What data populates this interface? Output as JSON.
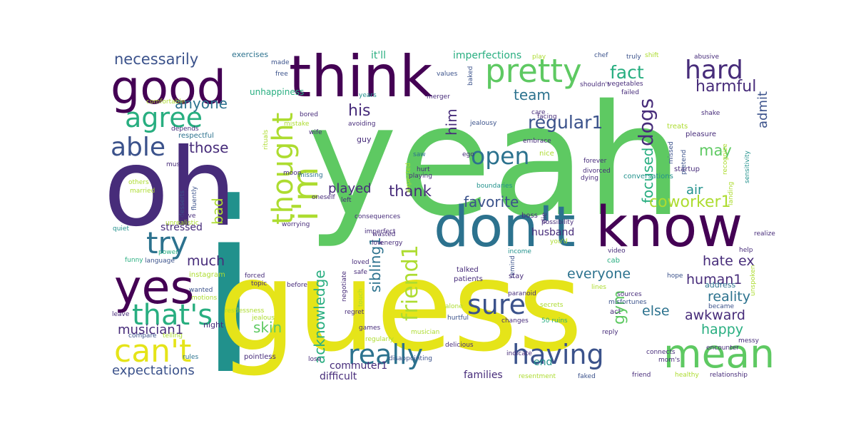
{
  "palette": {
    "deep_purple": "#440154",
    "indigo": "#472c7a",
    "blue_slate": "#3b528b",
    "steel_blue": "#2c728e",
    "teal": "#21918c",
    "sea_green": "#28ae80",
    "green": "#5ec962",
    "lime": "#addc30",
    "yellow": "#e5e419",
    "pale_yellow": "#dfe318"
  },
  "words": [
    {
      "text": "yeah",
      "color": "green"
    },
    {
      "text": "i",
      "color": "teal"
    },
    {
      "text": "guess",
      "color": "yellow"
    },
    {
      "text": "oh",
      "color": "indigo"
    },
    {
      "text": "don't",
      "color": "steel_blue"
    },
    {
      "text": "know",
      "color": "deep_purple"
    },
    {
      "text": "think",
      "color": "deep_purple"
    },
    {
      "text": "good",
      "color": "deep_purple"
    },
    {
      "text": "pretty",
      "color": "green"
    },
    {
      "text": "yes",
      "color": "deep_purple"
    },
    {
      "text": "really",
      "color": "steel_blue"
    },
    {
      "text": "having",
      "color": "blue_slate"
    },
    {
      "text": "mean",
      "color": "green"
    },
    {
      "text": "can't",
      "color": "yellow"
    },
    {
      "text": "that's",
      "color": "sea_green"
    },
    {
      "text": "i'm",
      "color": "lime"
    },
    {
      "text": "open",
      "color": "steel_blue"
    },
    {
      "text": "sure",
      "color": "blue_slate"
    },
    {
      "text": "hard",
      "color": "indigo"
    },
    {
      "text": "try",
      "color": "steel_blue"
    },
    {
      "text": "agree",
      "color": "sea_green"
    },
    {
      "text": "able",
      "color": "blue_slate"
    },
    {
      "text": "thought",
      "color": "lime"
    },
    {
      "text": "friend1",
      "color": "lime"
    },
    {
      "text": "fact",
      "color": "sea_green"
    },
    {
      "text": "regular1",
      "color": "blue_slate"
    },
    {
      "text": "dogs",
      "color": "indigo"
    },
    {
      "text": "focused",
      "color": "sea_green"
    },
    {
      "text": "harmful",
      "color": "indigo"
    },
    {
      "text": "admit",
      "color": "blue_slate"
    },
    {
      "text": "necessarily",
      "color": "blue_slate"
    },
    {
      "text": "anyone",
      "color": "steel_blue"
    },
    {
      "text": "his",
      "color": "indigo"
    },
    {
      "text": "team",
      "color": "steel_blue"
    },
    {
      "text": "him",
      "color": "indigo"
    },
    {
      "text": "those",
      "color": "indigo"
    },
    {
      "text": "may",
      "color": "green"
    },
    {
      "text": "gym",
      "color": "green"
    },
    {
      "text": "coworker1",
      "color": "lime"
    },
    {
      "text": "air",
      "color": "teal"
    },
    {
      "text": "thank",
      "color": "indigo"
    },
    {
      "text": "favorite",
      "color": "blue_slate"
    },
    {
      "text": "sibling1",
      "color": "steel_blue"
    },
    {
      "text": "acknowledge",
      "color": "sea_green"
    },
    {
      "text": "bad",
      "color": "lime"
    },
    {
      "text": "played",
      "color": "indigo"
    },
    {
      "text": "much",
      "color": "indigo"
    },
    {
      "text": "skin",
      "color": "green"
    },
    {
      "text": "everyone",
      "color": "steel_blue"
    },
    {
      "text": "hate",
      "color": "indigo"
    },
    {
      "text": "ex",
      "color": "indigo"
    },
    {
      "text": "human1",
      "color": "indigo"
    },
    {
      "text": "reality",
      "color": "steel_blue"
    },
    {
      "text": "else",
      "color": "steel_blue"
    },
    {
      "text": "awkward",
      "color": "indigo"
    },
    {
      "text": "happy",
      "color": "sea_green"
    },
    {
      "text": "musician1",
      "color": "indigo"
    },
    {
      "text": "expectations",
      "color": "blue_slate"
    },
    {
      "text": "stressed",
      "color": "indigo"
    },
    {
      "text": "husband",
      "color": "indigo"
    },
    {
      "text": "commuter1",
      "color": "indigo"
    },
    {
      "text": "difficult",
      "color": "indigo"
    },
    {
      "text": "families",
      "color": "indigo"
    },
    {
      "text": "end",
      "color": "teal"
    },
    {
      "text": "it'll",
      "color": "sea_green"
    },
    {
      "text": "imperfections",
      "color": "sea_green"
    },
    {
      "text": "exercises",
      "color": "steel_blue"
    },
    {
      "text": "made",
      "color": "blue_slate"
    },
    {
      "text": "free",
      "color": "blue_slate"
    },
    {
      "text": "unhappiness",
      "color": "sea_green"
    },
    {
      "text": "comfortable",
      "color": "lime"
    },
    {
      "text": "depends",
      "color": "indigo"
    },
    {
      "text": "respectful",
      "color": "steel_blue"
    },
    {
      "text": "must",
      "color": "indigo"
    },
    {
      "text": "others",
      "color": "lime"
    },
    {
      "text": "married",
      "color": "lime"
    },
    {
      "text": "fluently",
      "color": "blue_slate"
    },
    {
      "text": "desserts",
      "color": "blue_slate"
    },
    {
      "text": "alive",
      "color": "indigo"
    },
    {
      "text": "unrealistic",
      "color": "lime"
    },
    {
      "text": "quiet",
      "color": "teal"
    },
    {
      "text": "funny",
      "color": "sea_green"
    },
    {
      "text": "power",
      "color": "sea_green"
    },
    {
      "text": "language",
      "color": "blue_slate"
    },
    {
      "text": "instagram",
      "color": "lime"
    },
    {
      "text": "forced",
      "color": "indigo"
    },
    {
      "text": "topic",
      "color": "indigo"
    },
    {
      "text": "wanted",
      "color": "blue_slate"
    },
    {
      "text": "motions",
      "color": "lime"
    },
    {
      "text": "leave",
      "color": "indigo"
    },
    {
      "text": "compare",
      "color": "blue_slate"
    },
    {
      "text": "telling",
      "color": "lime"
    },
    {
      "text": "rules",
      "color": "steel_blue"
    },
    {
      "text": "pointless",
      "color": "indigo"
    },
    {
      "text": "night",
      "color": "indigo"
    },
    {
      "text": "restlessness",
      "color": "lime"
    },
    {
      "text": "jealous",
      "color": "lime"
    },
    {
      "text": "before",
      "color": "indigo"
    },
    {
      "text": "regret",
      "color": "indigo"
    },
    {
      "text": "lose",
      "color": "indigo"
    },
    {
      "text": "bored",
      "color": "indigo"
    },
    {
      "text": "mistake",
      "color": "lime"
    },
    {
      "text": "wife",
      "color": "indigo"
    },
    {
      "text": "rituals",
      "color": "lime"
    },
    {
      "text": "moon",
      "color": "indigo"
    },
    {
      "text": "missing",
      "color": "steel_blue"
    },
    {
      "text": "oneself",
      "color": "indigo"
    },
    {
      "text": "left",
      "color": "indigo"
    },
    {
      "text": "wasted",
      "color": "indigo"
    },
    {
      "text": "imperfect",
      "color": "indigo"
    },
    {
      "text": "worrying",
      "color": "indigo"
    },
    {
      "text": "consequences",
      "color": "indigo"
    },
    {
      "text": "negotiate",
      "color": "indigo"
    },
    {
      "text": "low",
      "color": "indigo"
    },
    {
      "text": "energy",
      "color": "indigo"
    },
    {
      "text": "loved",
      "color": "indigo"
    },
    {
      "text": "touch",
      "color": "lime"
    },
    {
      "text": "safe",
      "color": "indigo"
    },
    {
      "text": "regularly",
      "color": "lime"
    },
    {
      "text": "games",
      "color": "indigo"
    },
    {
      "text": "musician",
      "color": "lime"
    },
    {
      "text": "alone",
      "color": "lime"
    },
    {
      "text": "secrets",
      "color": "lime"
    },
    {
      "text": "hurtful",
      "color": "blue_slate"
    },
    {
      "text": "disappointing",
      "color": "blue_slate"
    },
    {
      "text": "delicious",
      "color": "indigo"
    },
    {
      "text": "changes",
      "color": "indigo"
    },
    {
      "text": "50 ruins",
      "color": "sea_green"
    },
    {
      "text": "years",
      "color": "teal"
    },
    {
      "text": "guy",
      "color": "indigo"
    },
    {
      "text": "avoiding",
      "color": "indigo"
    },
    {
      "text": "saw",
      "color": "steel_blue"
    },
    {
      "text": "hurt",
      "color": "indigo"
    },
    {
      "text": "expected",
      "color": "lime"
    },
    {
      "text": "playing",
      "color": "indigo"
    },
    {
      "text": "values",
      "color": "blue_slate"
    },
    {
      "text": "merger",
      "color": "indigo"
    },
    {
      "text": "baked",
      "color": "blue_slate"
    },
    {
      "text": "facing",
      "color": "indigo"
    },
    {
      "text": "care",
      "color": "indigo"
    },
    {
      "text": "jealousy",
      "color": "blue_slate"
    },
    {
      "text": "ego",
      "color": "indigo"
    },
    {
      "text": "embrace",
      "color": "indigo"
    },
    {
      "text": "nice",
      "color": "lime"
    },
    {
      "text": "boundaries",
      "color": "teal"
    },
    {
      "text": "die",
      "color": "indigo"
    },
    {
      "text": "boss",
      "color": "indigo"
    },
    {
      "text": "possibility",
      "color": "indigo"
    },
    {
      "text": "you'd",
      "color": "lime"
    },
    {
      "text": "income",
      "color": "teal"
    },
    {
      "text": "remind",
      "color": "blue_slate"
    },
    {
      "text": "talked",
      "color": "indigo"
    },
    {
      "text": "patients",
      "color": "indigo"
    },
    {
      "text": "stay",
      "color": "indigo"
    },
    {
      "text": "paranoid",
      "color": "indigo"
    },
    {
      "text": "indicate",
      "color": "indigo"
    },
    {
      "text": "faked",
      "color": "blue_slate"
    },
    {
      "text": "resentment",
      "color": "lime"
    },
    {
      "text": "play",
      "color": "lime"
    },
    {
      "text": "chef",
      "color": "blue_slate"
    },
    {
      "text": "truly",
      "color": "blue_slate"
    },
    {
      "text": "shift",
      "color": "lime"
    },
    {
      "text": "abusive",
      "color": "indigo"
    },
    {
      "text": "shouldn't",
      "color": "indigo"
    },
    {
      "text": "vegetables",
      "color": "indigo"
    },
    {
      "text": "failed",
      "color": "indigo"
    },
    {
      "text": "treats",
      "color": "lime"
    },
    {
      "text": "pleasure",
      "color": "indigo"
    },
    {
      "text": "shake",
      "color": "indigo"
    },
    {
      "text": "missed",
      "color": "blue_slate"
    },
    {
      "text": "forever",
      "color": "indigo"
    },
    {
      "text": "divorced",
      "color": "indigo"
    },
    {
      "text": "dying",
      "color": "indigo"
    },
    {
      "text": "conversations",
      "color": "teal"
    },
    {
      "text": "startup",
      "color": "indigo"
    },
    {
      "text": "pretend",
      "color": "blue_slate"
    },
    {
      "text": "recognize",
      "color": "lime"
    },
    {
      "text": "sensitivity",
      "color": "teal"
    },
    {
      "text": "landing",
      "color": "lime"
    },
    {
      "text": "realize",
      "color": "indigo"
    },
    {
      "text": "video",
      "color": "indigo"
    },
    {
      "text": "cab",
      "color": "sea_green"
    },
    {
      "text": "help",
      "color": "indigo"
    },
    {
      "text": "hope",
      "color": "blue_slate"
    },
    {
      "text": "lines",
      "color": "lime"
    },
    {
      "text": "sources",
      "color": "indigo"
    },
    {
      "text": "misfortunes",
      "color": "blue_slate"
    },
    {
      "text": "became",
      "color": "blue_slate"
    },
    {
      "text": "address",
      "color": "steel_blue"
    },
    {
      "text": "unspoken",
      "color": "lime"
    },
    {
      "text": "act",
      "color": "indigo"
    },
    {
      "text": "reply",
      "color": "indigo"
    },
    {
      "text": "encounter",
      "color": "indigo"
    },
    {
      "text": "mom's",
      "color": "indigo"
    },
    {
      "text": "messy",
      "color": "indigo"
    },
    {
      "text": "connects",
      "color": "indigo"
    },
    {
      "text": "friend",
      "color": "indigo"
    },
    {
      "text": "healthy",
      "color": "lime"
    },
    {
      "text": "relationship",
      "color": "indigo"
    }
  ]
}
